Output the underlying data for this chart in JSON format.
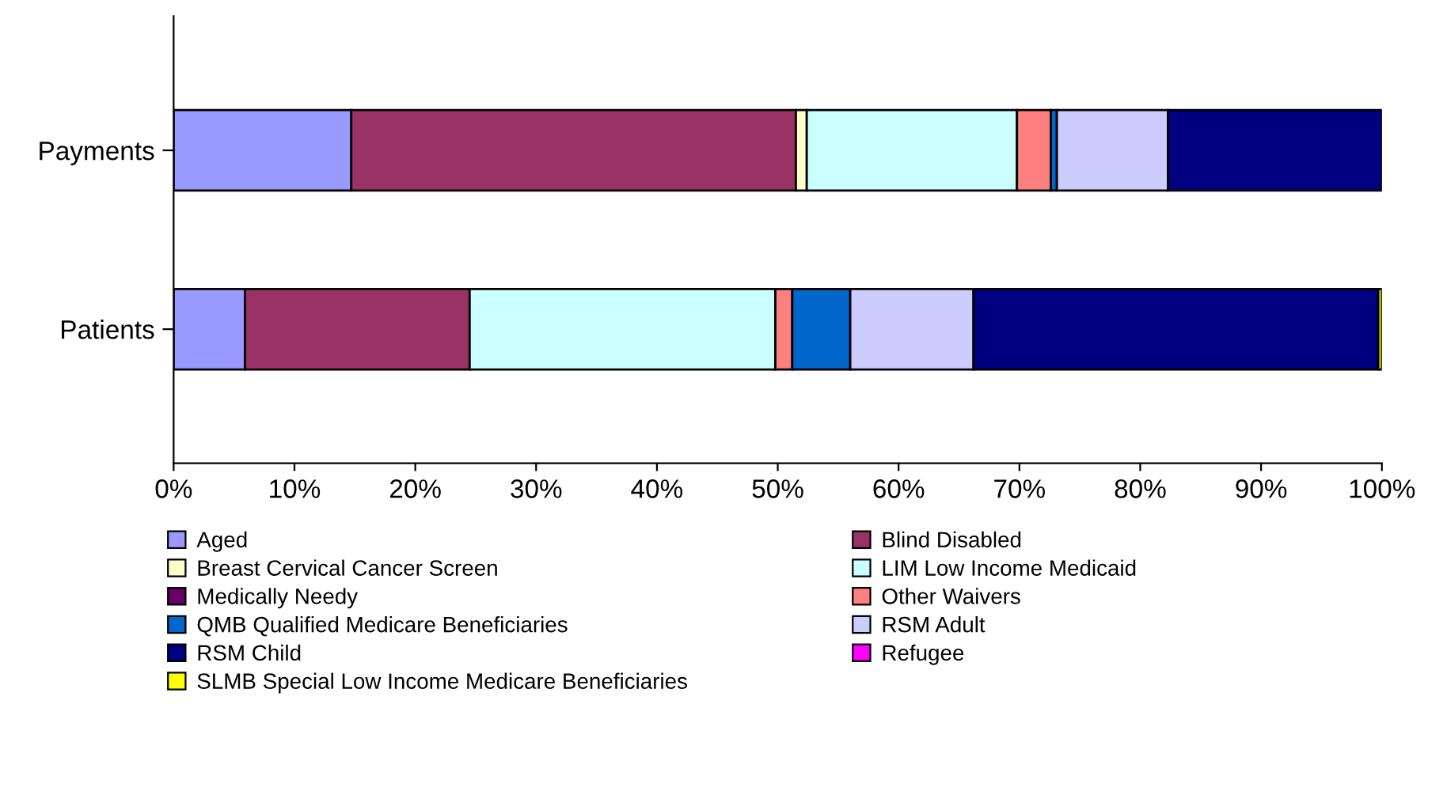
{
  "chart_data": {
    "type": "bar",
    "orientation": "horizontal",
    "stacked": true,
    "categories": [
      "Payments",
      "Patients"
    ],
    "series": [
      {
        "name": "Aged",
        "color": "#9999ff",
        "values": [
          14.7,
          5.9
        ]
      },
      {
        "name": "Blind Disabled",
        "color": "#993366",
        "values": [
          36.8,
          18.6
        ]
      },
      {
        "name": "Breast Cervical Cancer Screen",
        "color": "#ffffcc",
        "values": [
          0.9,
          null
        ]
      },
      {
        "name": "LIM Low Income Medicaid",
        "color": "#ccffff",
        "values": [
          17.4,
          25.3
        ]
      },
      {
        "name": "Medically Needy",
        "color": "#660066",
        "values": [
          0,
          0
        ]
      },
      {
        "name": "Other Waivers",
        "color": "#ff8080",
        "values": [
          2.8,
          1.4
        ]
      },
      {
        "name": "QMB Qualified Medicare Beneficiaries",
        "color": "#0066cc",
        "values": [
          0.5,
          4.8
        ]
      },
      {
        "name": "RSM Adult",
        "color": "#ccccff",
        "values": [
          9.2,
          10.2
        ]
      },
      {
        "name": "RSM Child",
        "color": "#000080",
        "values": [
          17.7,
          33.5
        ]
      },
      {
        "name": "Refugee",
        "color": "#ff00ff",
        "values": [
          0,
          0
        ]
      },
      {
        "name": "SLMB Special Low Income Medicare Beneficiaries",
        "color": "#ffff00",
        "values": [
          0,
          0.3
        ]
      }
    ],
    "xlim": [
      0,
      100
    ],
    "xticks": [
      {
        "value": 0,
        "label": "0%"
      },
      {
        "value": 10,
        "label": "10%"
      },
      {
        "value": 20,
        "label": "20%"
      },
      {
        "value": 30,
        "label": "30%"
      },
      {
        "value": 40,
        "label": "40%"
      },
      {
        "value": 50,
        "label": "50%"
      },
      {
        "value": 60,
        "label": "60%"
      },
      {
        "value": 70,
        "label": "70%"
      },
      {
        "value": 80,
        "label": "80%"
      },
      {
        "value": 90,
        "label": "90%"
      },
      {
        "value": 100,
        "label": "100%"
      }
    ],
    "grid": false,
    "legend": "bottom"
  }
}
